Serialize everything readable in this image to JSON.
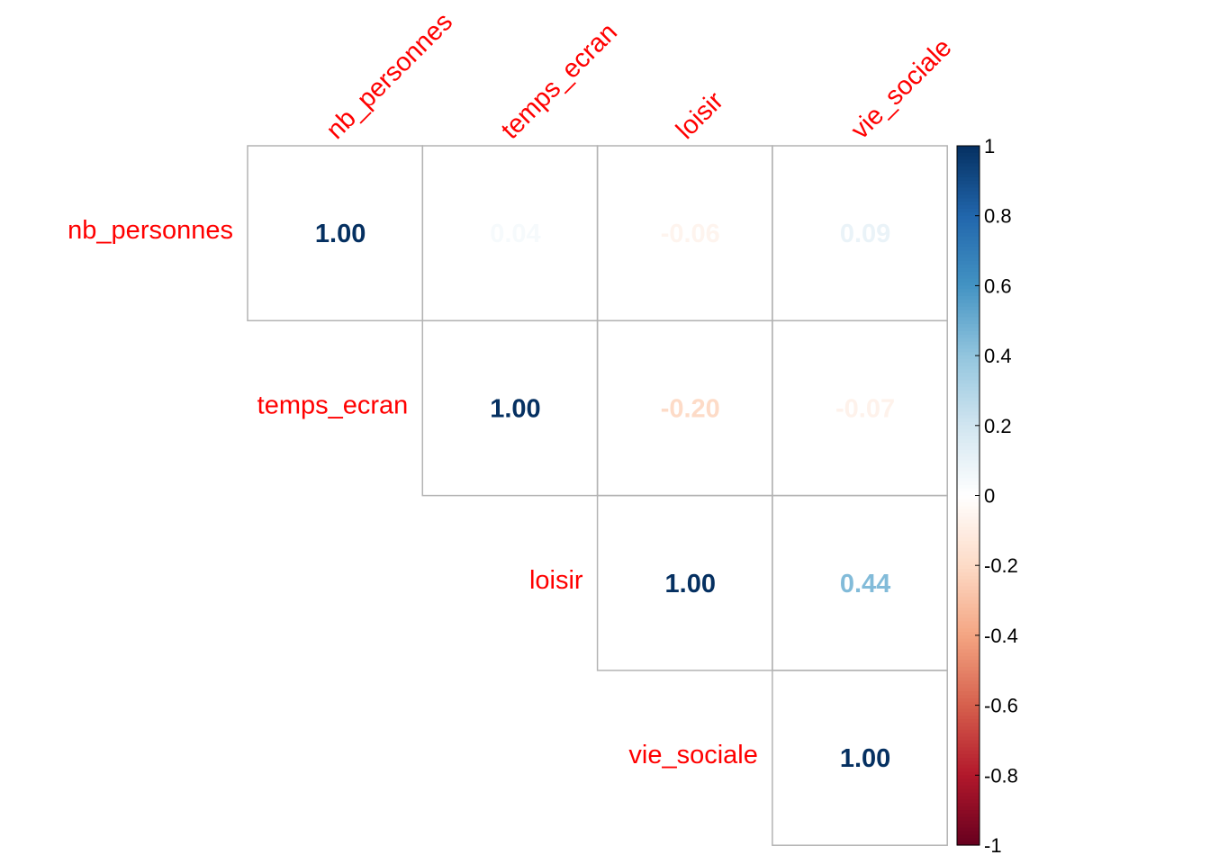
{
  "chart_data": {
    "type": "heatmap",
    "layout": "upper-triangle",
    "variables": [
      "nb_personnes",
      "temps_ecran",
      "loisir",
      "vie_sociale"
    ],
    "matrix": [
      [
        1.0,
        0.04,
        -0.06,
        0.09
      ],
      [
        0.04,
        1.0,
        -0.2,
        -0.07
      ],
      [
        -0.06,
        -0.2,
        1.0,
        0.44
      ],
      [
        0.09,
        -0.07,
        0.44,
        1.0
      ]
    ],
    "value_labels": [
      [
        "1.00",
        "0.04",
        "-0.06",
        "0.09"
      ],
      [
        "",
        "1.00",
        "-0.20",
        "-0.07"
      ],
      [
        "",
        "",
        "1.00",
        "0.44"
      ],
      [
        "",
        "",
        "",
        "1.00"
      ]
    ],
    "color_scale": {
      "range": [
        -1,
        1
      ],
      "ticks": [
        1,
        0.8,
        0.6,
        0.4,
        0.2,
        0,
        -0.2,
        -0.4,
        -0.6,
        -0.8,
        -1
      ],
      "tick_labels": [
        "1",
        "0.8",
        "0.6",
        "0.4",
        "0.2",
        "0",
        "-0.2",
        "-0.4",
        "-0.6",
        "-0.8",
        "-1"
      ],
      "colors": [
        "#67001f",
        "#b2182b",
        "#d6604d",
        "#f4a582",
        "#fddbc7",
        "#ffffff",
        "#d1e5f0",
        "#92c5de",
        "#4393c3",
        "#2166ac",
        "#053061"
      ]
    },
    "label_color": "#ff0000",
    "grid": true,
    "legend_placement": "right"
  }
}
